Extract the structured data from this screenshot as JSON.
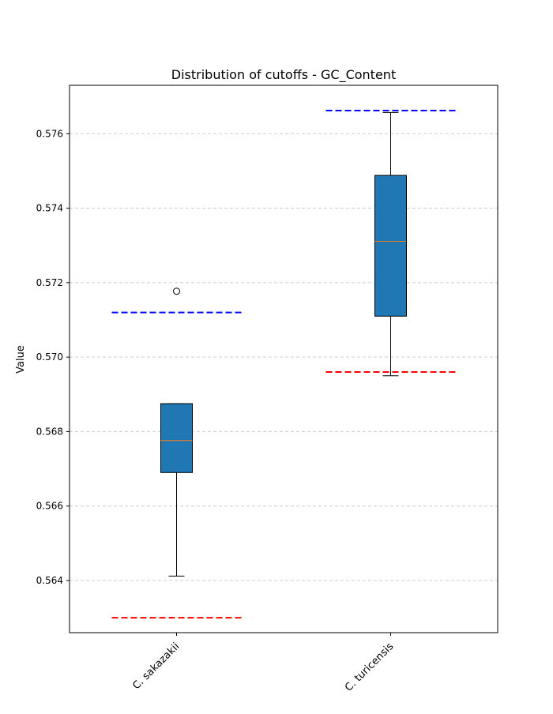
{
  "chart_data": {
    "type": "box",
    "title": "Distribution of cutoffs - GC_Content",
    "xlabel": "",
    "ylabel": "Value",
    "ylim": [
      0.5626,
      0.5773
    ],
    "yticks": [
      0.564,
      0.566,
      0.568,
      0.57,
      0.572,
      0.574,
      0.576
    ],
    "ytick_labels": [
      "0.564",
      "0.566",
      "0.568",
      "0.570",
      "0.572",
      "0.574",
      "0.576"
    ],
    "grid": "y-dashed",
    "categories": [
      "C. sakazakii",
      "C. turicensis"
    ],
    "boxes": [
      {
        "category": "C. sakazakii",
        "whisker_low": 0.56412,
        "q1": 0.5669,
        "median": 0.56776,
        "q3": 0.56875,
        "whisker_high": 0.56875,
        "outliers": [
          0.57177
        ],
        "upper_cutoff": 0.5712,
        "lower_cutoff": 0.563
      },
      {
        "category": "C. turicensis",
        "whisker_low": 0.5695,
        "q1": 0.5711,
        "median": 0.57311,
        "q3": 0.57488,
        "whisker_high": 0.57657,
        "outliers": [],
        "upper_cutoff": 0.57662,
        "lower_cutoff": 0.5696
      }
    ],
    "colors": {
      "box_fill": "#1f77b4",
      "median": "#ff7f0e",
      "upper_cutoff_line": "#0000ff",
      "lower_cutoff_line": "#ff0000",
      "grid": "#cccccc"
    }
  }
}
